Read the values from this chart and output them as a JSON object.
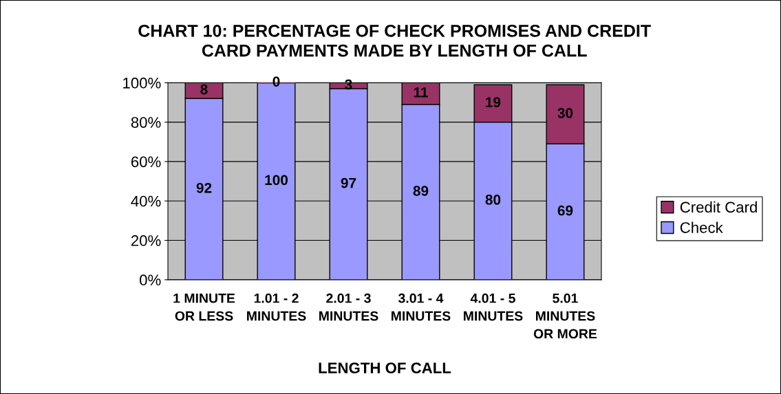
{
  "chart_data": {
    "type": "bar",
    "stacked": true,
    "title": "CHART 10: PERCENTAGE OF CHECK PROMISES AND CREDIT\nCARD PAYMENTS MADE BY LENGTH OF CALL",
    "xlabel": "LENGTH OF CALL",
    "categories": [
      "1 MINUTE\nOR LESS",
      "1.01 - 2\nMINUTES",
      "2.01 - 3\nMINUTES",
      "3.01 - 4\nMINUTES",
      "4.01 - 5\nMINUTES",
      "5.01\nMINUTES\nOR MORE"
    ],
    "series": [
      {
        "name": "Check",
        "color": "#9999ff",
        "values": [
          92,
          100,
          97,
          89,
          80,
          69
        ]
      },
      {
        "name": "Credit Card",
        "color": "#993366",
        "values": [
          8,
          0,
          3,
          11,
          19,
          30
        ]
      }
    ],
    "ylim": [
      0,
      100
    ],
    "yticks": [
      {
        "value": 0,
        "label": "0%"
      },
      {
        "value": 20,
        "label": "20%"
      },
      {
        "value": 40,
        "label": "40%"
      },
      {
        "value": 60,
        "label": "60%"
      },
      {
        "value": 80,
        "label": "80%"
      },
      {
        "value": 100,
        "label": "100%"
      }
    ],
    "grid": "y",
    "legend": "right",
    "data_labels": true
  }
}
